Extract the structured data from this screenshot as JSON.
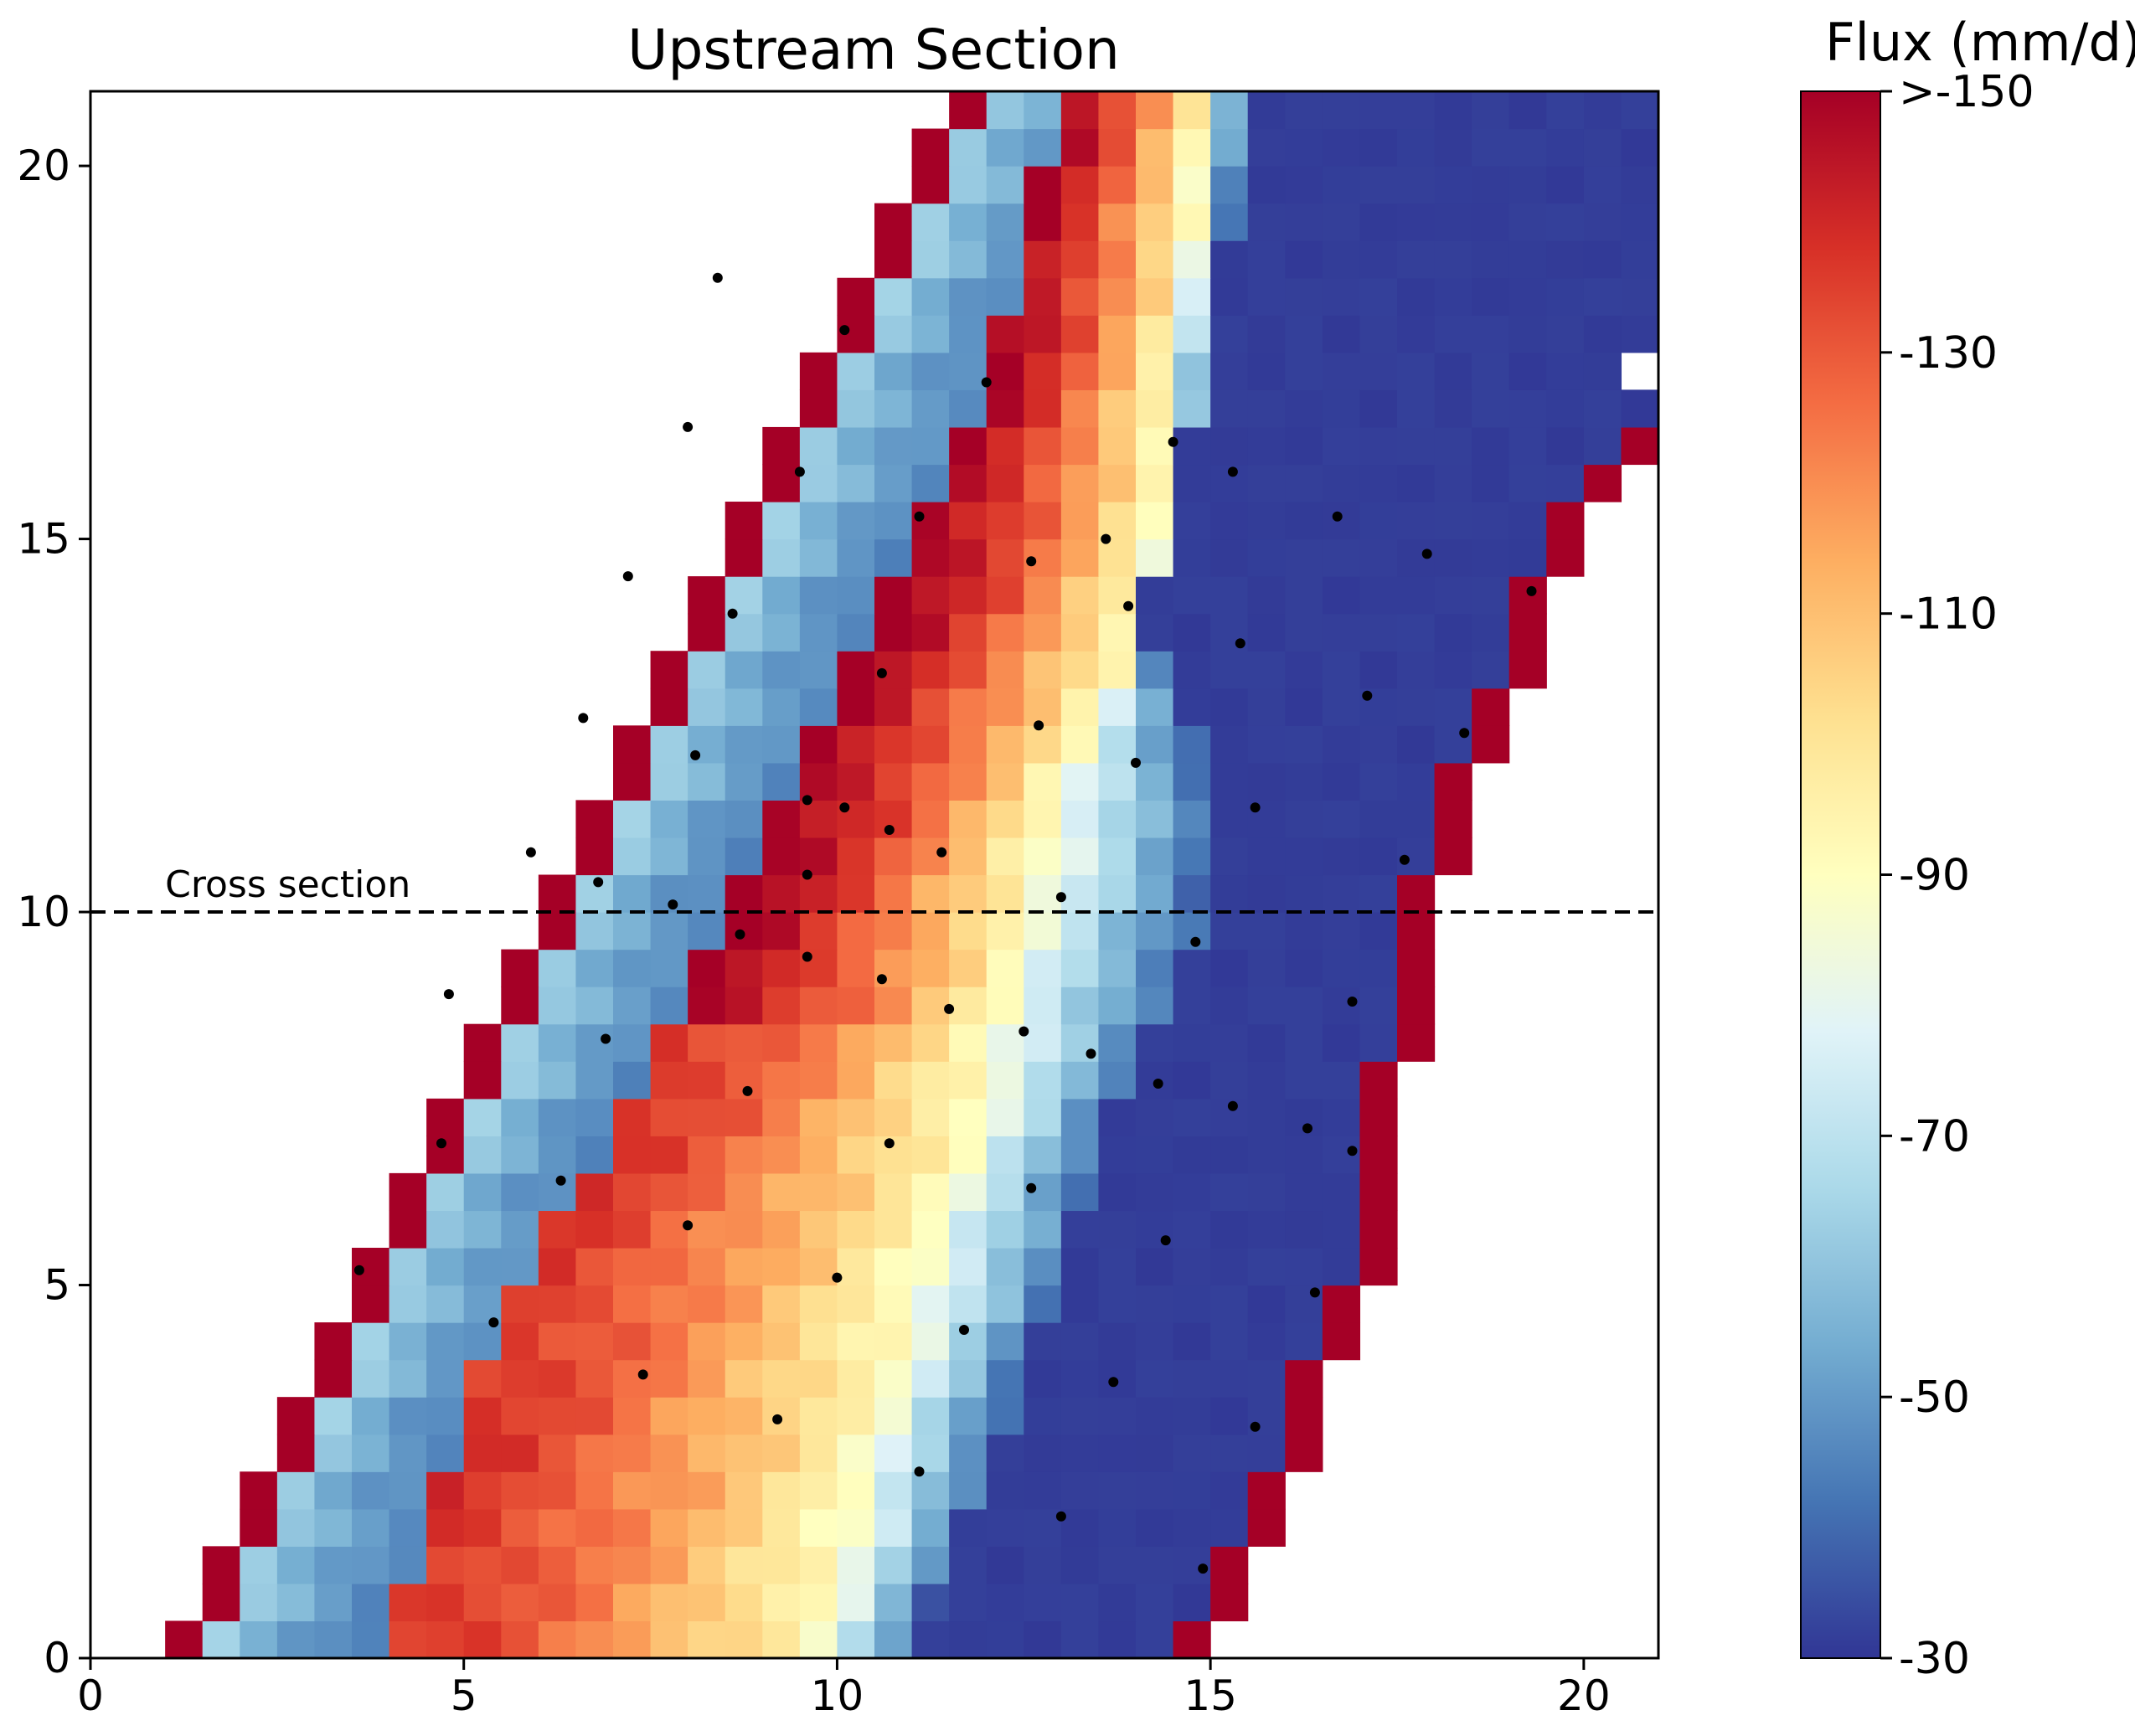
{
  "chart_data": {
    "type": "heatmap",
    "title": "Upstream Section",
    "xlabel": "",
    "ylabel": "",
    "xlim": [
      0,
      21
    ],
    "ylim": [
      0,
      21
    ],
    "x_ticks": [
      0,
      5,
      10,
      15,
      20
    ],
    "y_ticks": [
      0,
      5,
      10,
      15,
      20
    ],
    "grid": false,
    "colorbar": {
      "title": "Flux (mm/d)",
      "range": [
        -150,
        -30
      ],
      "ticks": [
        -150,
        -130,
        -110,
        -90,
        -70,
        -50,
        -30
      ],
      "tick_labels": [
        ">-150",
        "-130",
        "-110",
        "-90",
        "-70",
        "-50",
        "-30"
      ],
      "colormap": [
        "#a50026",
        "#d73027",
        "#f46d43",
        "#fdae61",
        "#fee090",
        "#ffffbf",
        "#e0f3f8",
        "#abd9e9",
        "#74add1",
        "#4575b4",
        "#313695"
      ]
    },
    "cell_size": 0.5,
    "band_structure": {
      "description": "Diagonal band of cells; each row runs from left red edge, blue-to-light gradient, red/orange core, light gradient, dark blue, right red edge",
      "left_edge_x_at_y0": 1.0,
      "edge_slope_dx_per_dy": 0.5,
      "left_edge_value": -150,
      "left_gradient_values": [
        -62,
        -55,
        -50,
        -47,
        -45,
        -44,
        -42,
        -40
      ],
      "right_region_value": -32,
      "right_edge_value": -150,
      "core_profile": [
        {
          "y": 0,
          "x_start": 4.0,
          "peak_x": 9.8,
          "min_x": 11.0
        },
        {
          "y": 5,
          "x_start": 5.6,
          "peak_x": 11.2,
          "min_x": 13.0
        },
        {
          "y": 8,
          "x_start": 7.6,
          "peak_x": 12.2,
          "min_x": 14.0
        },
        {
          "y": 10,
          "x_start": 8.6,
          "peak_x": 12.6,
          "min_x": 15.0
        },
        {
          "y": 12,
          "x_start": 9.6,
          "peak_x": 13.2,
          "min_x": 14.9
        },
        {
          "y": 14,
          "x_start": 10.6,
          "peak_x": 14.2,
          "min_x": 14.0
        },
        {
          "y": 17,
          "x_start": 12.0,
          "peak_x": 14.5,
          "min_x": 15.0
        },
        {
          "y": 21,
          "x_start": 13.0,
          "peak_x": 15.0,
          "min_x": 15.5
        }
      ],
      "right_edge_x": [
        {
          "y": 0,
          "x": 14.5
        },
        {
          "y": 5,
          "x": 16.8
        },
        {
          "y": 10,
          "x": 17.5
        },
        {
          "y": 15,
          "x": 19.5
        },
        {
          "y": 17,
          "x": 21.0
        },
        {
          "y": 21,
          "x": 21.0
        }
      ],
      "blank_cells": [
        [
          20.5,
          17.0
        ]
      ]
    },
    "scatter_points": {
      "x": [
        8.4,
        10.1,
        12.0,
        14.5,
        15.3,
        16.7,
        17.9,
        19.3,
        8.0,
        9.5,
        11.1,
        12.6,
        13.9,
        13.6,
        7.2,
        8.6,
        10.6,
        12.7,
        15.4,
        17.1,
        18.4,
        6.6,
        8.1,
        9.6,
        10.1,
        10.7,
        11.4,
        14.0,
        15.6,
        17.6,
        5.9,
        6.8,
        7.8,
        8.7,
        9.6,
        13.0,
        14.8,
        4.8,
        9.6,
        10.6,
        11.5,
        12.5,
        13.4,
        16.9,
        6.9,
        8.8,
        14.3,
        4.7,
        10.7,
        15.3,
        16.3,
        16.9,
        6.3,
        12.6,
        8.0,
        14.4,
        3.6,
        10.0,
        16.4,
        5.4,
        11.7,
        7.4,
        13.7,
        9.2,
        15.6,
        11.1,
        13.0,
        14.9
      ],
      "y": [
        18.5,
        17.8,
        17.1,
        16.3,
        15.9,
        15.3,
        14.8,
        14.3,
        16.5,
        15.9,
        15.3,
        14.7,
        14.1,
        15.0,
        14.5,
        14.0,
        13.2,
        12.5,
        13.6,
        12.9,
        12.4,
        12.6,
        12.1,
        11.5,
        11.4,
        11.1,
        10.8,
        12.0,
        11.4,
        10.7,
        10.8,
        10.4,
        10.1,
        9.7,
        10.5,
        10.2,
        9.6,
        8.9,
        9.4,
        9.1,
        8.7,
        8.4,
        8.1,
        8.8,
        8.3,
        7.6,
        7.7,
        6.9,
        6.9,
        7.4,
        7.1,
        6.8,
        6.4,
        6.3,
        5.8,
        5.6,
        5.2,
        5.1,
        4.9,
        4.5,
        4.4,
        3.8,
        3.7,
        3.2,
        3.1,
        2.5,
        1.9,
        1.2
      ]
    },
    "annotations": [
      {
        "type": "hline",
        "y": 10,
        "style": "dashed",
        "label": "Cross section"
      }
    ]
  }
}
